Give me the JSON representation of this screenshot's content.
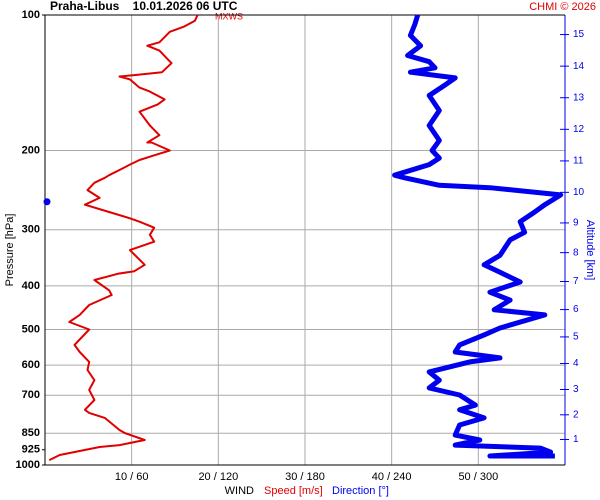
{
  "chart_data": {
    "type": "wind-profile",
    "title": "Praha-Libus    10.01.2026 06 UTC",
    "credit": "CHMI © 2026",
    "annotation": "MXWS",
    "ylabel": "Pressure [hPa]",
    "y2label": "Altitude [km]",
    "xlabel": "WIND",
    "log_y": true,
    "ylim": [
      100,
      1000
    ],
    "yticks": [
      100,
      200,
      300,
      400,
      500,
      600,
      700,
      850,
      925,
      1000
    ],
    "y2ticks": [
      1,
      2,
      3,
      4,
      5,
      6,
      7,
      8,
      9,
      10,
      11,
      12,
      13,
      14,
      15
    ],
    "xlim": [
      0,
      60
    ],
    "x2lim": [
      0,
      360
    ],
    "xticks": [
      {
        "value": 10,
        "label": "10 / 60"
      },
      {
        "value": 20,
        "label": "20 / 120"
      },
      {
        "value": 30,
        "label": "30 / 180"
      },
      {
        "value": 40,
        "label": "40 / 240"
      },
      {
        "value": 50,
        "label": "50 / 300"
      }
    ],
    "grid": true,
    "marker_pressure": 260,
    "series": [
      {
        "name": "Speed [m/s]",
        "color": "#e00000",
        "axis": "x",
        "pressure": [
          100,
          103,
          106,
          109,
          115,
          117,
          120,
          128,
          134,
          136,
          137,
          139,
          145,
          148,
          154,
          158,
          164,
          176,
          185,
          192,
          192,
          200,
          205,
          210,
          215,
          221,
          227,
          230,
          236,
          245,
          255,
          264,
          274,
          283,
          288,
          297,
          308,
          319,
          333,
          359,
          371,
          376,
          388,
          409,
          419,
          441,
          464,
          481,
          500,
          541,
          561,
          590,
          615,
          648,
          681,
          717,
          754,
          766,
          786,
          836,
          849,
          880,
          903,
          912,
          950,
          975
        ],
        "values": [
          17.6,
          17.3,
          16.1,
          14.4,
          13.2,
          11.8,
          13.2,
          14.6,
          13.5,
          10.3,
          8.6,
          9.8,
          10.9,
          12.1,
          13.8,
          13.0,
          10.9,
          12.1,
          13.2,
          11.8,
          12.3,
          14.4,
          12.6,
          10.9,
          9.8,
          8.6,
          7.4,
          6.9,
          5.7,
          4.9,
          6.3,
          4.6,
          7.4,
          9.8,
          10.9,
          12.6,
          12.1,
          12.6,
          9.8,
          11.5,
          10.3,
          8.4,
          5.7,
          7.4,
          7.7,
          5.1,
          4.0,
          2.8,
          5.1,
          3.4,
          4.0,
          5.1,
          4.9,
          5.7,
          5.1,
          5.7,
          4.6,
          5.1,
          6.9,
          8.6,
          9.2,
          11.5,
          8.6,
          6.3,
          1.7,
          0.5
        ]
      },
      {
        "name": "Direction [°]",
        "color": "#0000ee",
        "axis": "x2",
        "pressure": [
          100,
          105,
          111,
          117,
          123,
          127,
          131,
          134,
          138,
          143,
          151,
          163,
          176,
          190,
          200,
          208,
          215,
          227,
          230,
          239,
          242,
          251,
          264,
          274,
          288,
          304,
          316,
          342,
          359,
          373,
          392,
          413,
          430,
          452,
          464,
          496,
          514,
          541,
          561,
          578,
          590,
          621,
          648,
          674,
          699,
          736,
          754,
          786,
          815,
          858,
          880,
          903,
          917,
          936,
          955,
          955
        ],
        "values": [
          258,
          256,
          253,
          260,
          251,
          266,
          270,
          253,
          284,
          277,
          266,
          273,
          266,
          273,
          268,
          273,
          266,
          242,
          249,
          273,
          308,
          357,
          346,
          339,
          329,
          332,
          322,
          315,
          304,
          315,
          329,
          308,
          322,
          311,
          346,
          315,
          304,
          287,
          284,
          315,
          294,
          266,
          273,
          266,
          287,
          298,
          287,
          304,
          287,
          284,
          301,
          284,
          343,
          350,
          308,
          353
        ]
      }
    ]
  }
}
